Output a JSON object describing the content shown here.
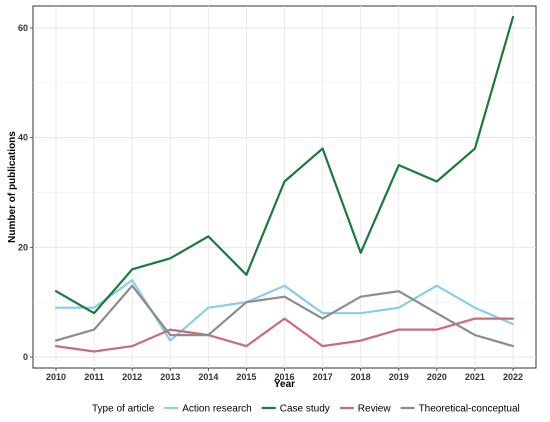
{
  "chart_data": {
    "type": "line",
    "xlabel": "Year",
    "ylabel": "Number of publications",
    "x": [
      2010,
      2011,
      2012,
      2013,
      2014,
      2015,
      2016,
      2017,
      2018,
      2019,
      2020,
      2021,
      2022
    ],
    "xlim": [
      2010,
      2022
    ],
    "ylim": [
      -2,
      64
    ],
    "yticks": [
      0,
      20,
      40,
      60
    ],
    "grid": true,
    "legend": {
      "title": "Type of article",
      "position": "bottom"
    },
    "series": [
      {
        "name": "Action research",
        "color": "#87ceeb",
        "values": [
          9,
          9,
          14,
          3,
          9,
          10,
          13,
          8,
          8,
          9,
          13,
          9,
          6
        ]
      },
      {
        "name": "Case study",
        "color": "#1a7a3a",
        "values": [
          12,
          8,
          16,
          18,
          22,
          15,
          32,
          38,
          19,
          35,
          32,
          38,
          62
        ]
      },
      {
        "name": "Review",
        "color": "#c96a7d",
        "values": [
          2,
          1,
          2,
          5,
          4,
          2,
          7,
          2,
          3,
          5,
          5,
          7,
          7
        ]
      },
      {
        "name": "Theoretical-conceptual",
        "color": "#8c8c8c",
        "values": [
          3,
          5,
          13,
          4,
          4,
          10,
          11,
          7,
          11,
          12,
          8,
          4,
          2
        ]
      }
    ]
  }
}
